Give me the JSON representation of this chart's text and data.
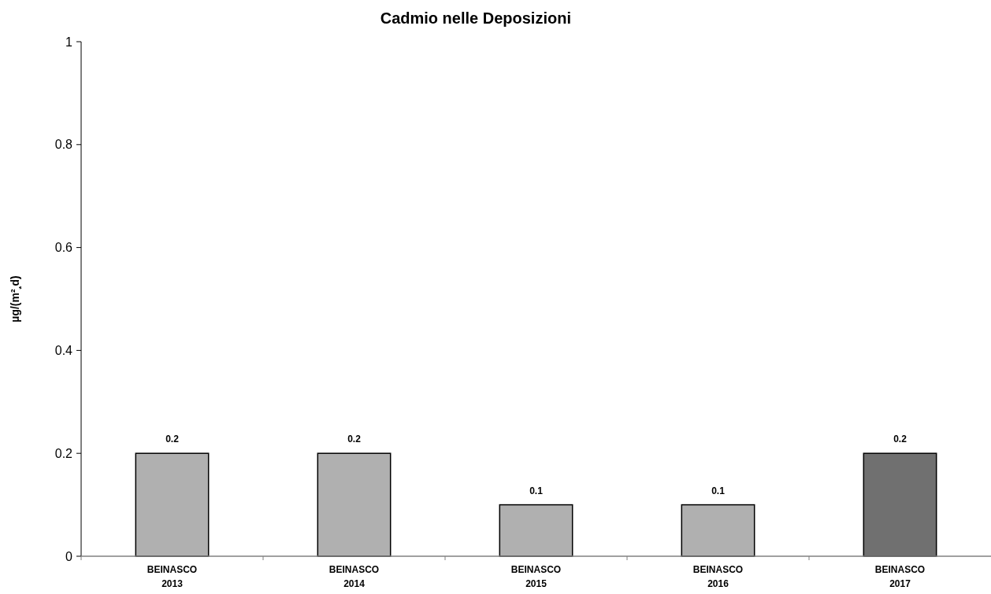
{
  "chart_data": {
    "type": "bar",
    "title": "Cadmio nelle Deposizioni",
    "ylabel": "µg/(m²$_{*}$d)",
    "categories": [
      "BEINASCO\n2013",
      "BEINASCO\n2014",
      "BEINASCO\n2015",
      "BEINASCO\n2016",
      "BEINASCO\n2017"
    ],
    "values": [
      0.2,
      0.2,
      0.1,
      0.1,
      0.2
    ],
    "colors": [
      "#b0b0b0",
      "#b0b0b0",
      "#b0b0b0",
      "#b0b0b0",
      "#707070"
    ],
    "ylim": [
      0,
      1
    ],
    "yticks": [
      0,
      0.2,
      0.4,
      0.6,
      0.8,
      1
    ],
    "grid": false,
    "data_labels": true
  }
}
